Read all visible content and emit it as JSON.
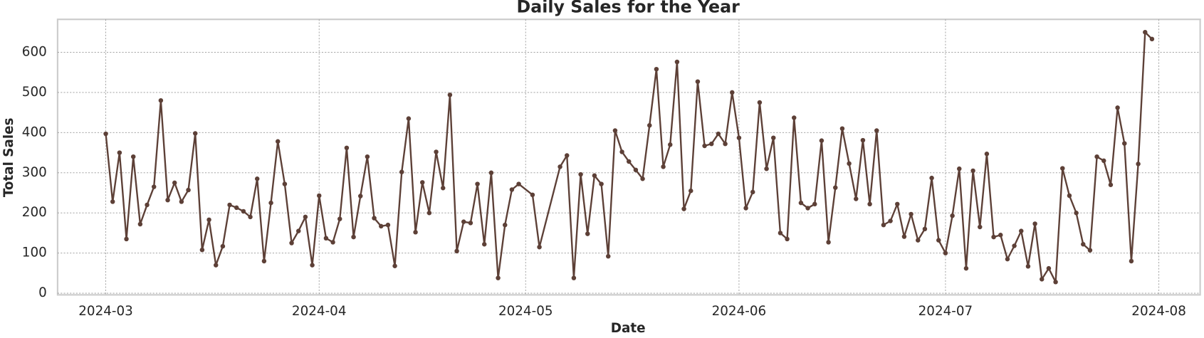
{
  "chart_data": {
    "type": "line",
    "title": "Daily Sales for the Year",
    "x_label": "Date",
    "y_label": "Total Sales",
    "x": [
      "2024-03-01",
      "2024-03-02",
      "2024-03-03",
      "2024-03-04",
      "2024-03-05",
      "2024-03-06",
      "2024-03-07",
      "2024-03-08",
      "2024-03-09",
      "2024-03-10",
      "2024-03-11",
      "2024-03-12",
      "2024-03-13",
      "2024-03-14",
      "2024-03-15",
      "2024-03-16",
      "2024-03-17",
      "2024-03-18",
      "2024-03-19",
      "2024-03-20",
      "2024-03-21",
      "2024-03-22",
      "2024-03-23",
      "2024-03-24",
      "2024-03-25",
      "2024-03-26",
      "2024-03-27",
      "2024-03-28",
      "2024-03-29",
      "2024-03-30",
      "2024-03-31",
      "2024-04-01",
      "2024-04-02",
      "2024-04-03",
      "2024-04-04",
      "2024-04-05",
      "2024-04-06",
      "2024-04-07",
      "2024-04-08",
      "2024-04-09",
      "2024-04-10",
      "2024-04-11",
      "2024-04-12",
      "2024-04-13",
      "2024-04-14",
      "2024-04-15",
      "2024-04-16",
      "2024-04-17",
      "2024-04-18",
      "2024-04-19",
      "2024-04-20",
      "2024-04-21",
      "2024-04-22",
      "2024-04-23",
      "2024-04-24",
      "2024-04-25",
      "2024-04-26",
      "2024-04-27",
      "2024-04-28",
      "2024-04-29",
      "2024-04-30",
      "2024-05-02",
      "2024-05-03",
      "2024-05-06",
      "2024-05-07",
      "2024-05-08",
      "2024-05-09",
      "2024-05-10",
      "2024-05-11",
      "2024-05-12",
      "2024-05-13",
      "2024-05-14",
      "2024-05-15",
      "2024-05-16",
      "2024-05-17",
      "2024-05-18",
      "2024-05-19",
      "2024-05-20",
      "2024-05-21",
      "2024-05-22",
      "2024-05-23",
      "2024-05-24",
      "2024-05-25",
      "2024-05-26",
      "2024-05-27",
      "2024-05-28",
      "2024-05-29",
      "2024-05-30",
      "2024-05-31",
      "2024-06-01",
      "2024-06-02",
      "2024-06-03",
      "2024-06-04",
      "2024-06-05",
      "2024-06-06",
      "2024-06-07",
      "2024-06-08",
      "2024-06-09",
      "2024-06-10",
      "2024-06-11",
      "2024-06-12",
      "2024-06-13",
      "2024-06-14",
      "2024-06-15",
      "2024-06-16",
      "2024-06-17",
      "2024-06-18",
      "2024-06-19",
      "2024-06-20",
      "2024-06-21",
      "2024-06-22",
      "2024-06-23",
      "2024-06-24",
      "2024-06-25",
      "2024-06-26",
      "2024-06-27",
      "2024-06-28",
      "2024-06-29",
      "2024-06-30",
      "2024-07-01",
      "2024-07-02",
      "2024-07-03",
      "2024-07-04",
      "2024-07-05",
      "2024-07-06",
      "2024-07-07",
      "2024-07-08",
      "2024-07-09",
      "2024-07-10",
      "2024-07-11",
      "2024-07-12",
      "2024-07-13",
      "2024-07-14",
      "2024-07-15",
      "2024-07-16",
      "2024-07-17",
      "2024-07-18",
      "2024-07-19",
      "2024-07-20",
      "2024-07-21",
      "2024-07-22",
      "2024-07-23",
      "2024-07-24",
      "2024-07-25",
      "2024-07-26",
      "2024-07-27",
      "2024-07-28",
      "2024-07-29",
      "2024-07-30",
      "2024-07-31"
    ],
    "series": [
      {
        "color": "#5d4037",
        "values": [
          397,
          228,
          350,
          135,
          340,
          172,
          220,
          265,
          480,
          232,
          275,
          228,
          257,
          398,
          108,
          183,
          70,
          117,
          220,
          213,
          204,
          190,
          285,
          80,
          225,
          378,
          272,
          125,
          155,
          190,
          70,
          243,
          137,
          127,
          185,
          362,
          140,
          242,
          340,
          187,
          167,
          170,
          68,
          302,
          435,
          152,
          276,
          200,
          352,
          262,
          494,
          105,
          178,
          175,
          272,
          122,
          300,
          38,
          170,
          258,
          272,
          245,
          115,
          315,
          343,
          38,
          296,
          148,
          293,
          272,
          92,
          405,
          352,
          328,
          307,
          285,
          418,
          558,
          315,
          370,
          576,
          210,
          255,
          527,
          367,
          372,
          397,
          372,
          500,
          387,
          212,
          252,
          475,
          310,
          387,
          150,
          135,
          437,
          225,
          212,
          222,
          380,
          127,
          263,
          410,
          323,
          235,
          381,
          222,
          405,
          170,
          180,
          222,
          141,
          197,
          132,
          160,
          287,
          132,
          100,
          193,
          310,
          62,
          305,
          165,
          347,
          140,
          145,
          85,
          118,
          155,
          67,
          173,
          35,
          62,
          28,
          311,
          243,
          200,
          122,
          107,
          340,
          330,
          270,
          462,
          373,
          80,
          322,
          650,
          633
        ]
      }
    ],
    "xlim": [
      "2024-02-23",
      "2024-08-07"
    ],
    "xticks": [
      {
        "value": "2024-03-01",
        "label": "2024-03"
      },
      {
        "value": "2024-04-01",
        "label": "2024-04"
      },
      {
        "value": "2024-05-01",
        "label": "2024-05"
      },
      {
        "value": "2024-06-01",
        "label": "2024-06"
      },
      {
        "value": "2024-07-01",
        "label": "2024-07"
      },
      {
        "value": "2024-08-01",
        "label": "2024-08"
      }
    ],
    "ylim": [
      -4,
      682
    ],
    "yticks": [
      0,
      100,
      200,
      300,
      400,
      500,
      600
    ],
    "grid": true
  }
}
